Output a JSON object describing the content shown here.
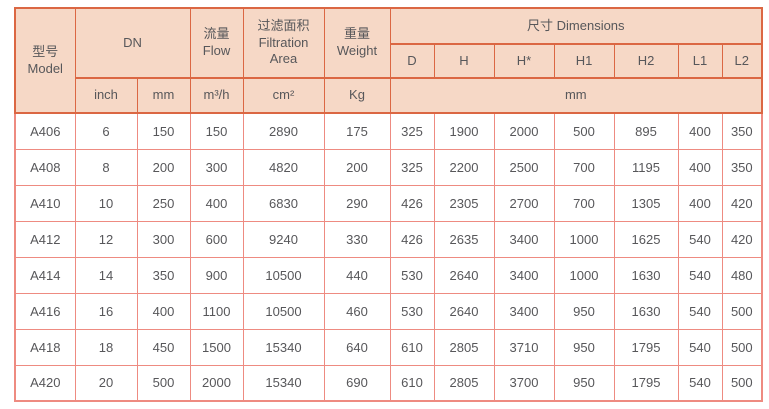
{
  "colors": {
    "header_bg": "#f6d8c6",
    "header_border": "#db6743",
    "grid_border": "#ee8b81",
    "text": "#57575a"
  },
  "table": {
    "header": {
      "model": {
        "zh": "型号",
        "en": "Model"
      },
      "dn": "DN",
      "flow": {
        "zh": "流量",
        "en": "Flow"
      },
      "filtration": {
        "zh": "过滤面积",
        "en": "Filtration Area"
      },
      "weight": {
        "zh": "重量",
        "en": "Weight"
      },
      "dimensions": "尺寸 Dimensions",
      "dim_columns": [
        "D",
        "H",
        "H*",
        "H1",
        "H2",
        "L1",
        "L2"
      ],
      "units": {
        "inch": "inch",
        "mm": "mm",
        "flow": "m³/h",
        "area": "cm²",
        "weight": "Kg",
        "dims": "mm"
      }
    },
    "rows": [
      {
        "model": "A406",
        "dn_inch": "6",
        "dn_mm": "150",
        "flow": "150",
        "area": "2890",
        "weight": "175",
        "dims": [
          "325",
          "1900",
          "2000",
          "500",
          "895",
          "400",
          "350"
        ]
      },
      {
        "model": "A408",
        "dn_inch": "8",
        "dn_mm": "200",
        "flow": "300",
        "area": "4820",
        "weight": "200",
        "dims": [
          "325",
          "2200",
          "2500",
          "700",
          "1195",
          "400",
          "350"
        ]
      },
      {
        "model": "A410",
        "dn_inch": "10",
        "dn_mm": "250",
        "flow": "400",
        "area": "6830",
        "weight": "290",
        "dims": [
          "426",
          "2305",
          "2700",
          "700",
          "1305",
          "400",
          "420"
        ]
      },
      {
        "model": "A412",
        "dn_inch": "12",
        "dn_mm": "300",
        "flow": "600",
        "area": "9240",
        "weight": "330",
        "dims": [
          "426",
          "2635",
          "3400",
          "1000",
          "1625",
          "540",
          "420"
        ]
      },
      {
        "model": "A414",
        "dn_inch": "14",
        "dn_mm": "350",
        "flow": "900",
        "area": "10500",
        "weight": "440",
        "dims": [
          "530",
          "2640",
          "3400",
          "1000",
          "1630",
          "540",
          "480"
        ]
      },
      {
        "model": "A416",
        "dn_inch": "16",
        "dn_mm": "400",
        "flow": "1100",
        "area": "10500",
        "weight": "460",
        "dims": [
          "530",
          "2640",
          "3400",
          "950",
          "1630",
          "540",
          "500"
        ]
      },
      {
        "model": "A418",
        "dn_inch": "18",
        "dn_mm": "450",
        "flow": "1500",
        "area": "15340",
        "weight": "640",
        "dims": [
          "610",
          "2805",
          "3710",
          "950",
          "1795",
          "540",
          "500"
        ]
      },
      {
        "model": "A420",
        "dn_inch": "20",
        "dn_mm": "500",
        "flow": "2000",
        "area": "15340",
        "weight": "690",
        "dims": [
          "610",
          "2805",
          "3700",
          "950",
          "1795",
          "540",
          "500"
        ]
      }
    ]
  }
}
